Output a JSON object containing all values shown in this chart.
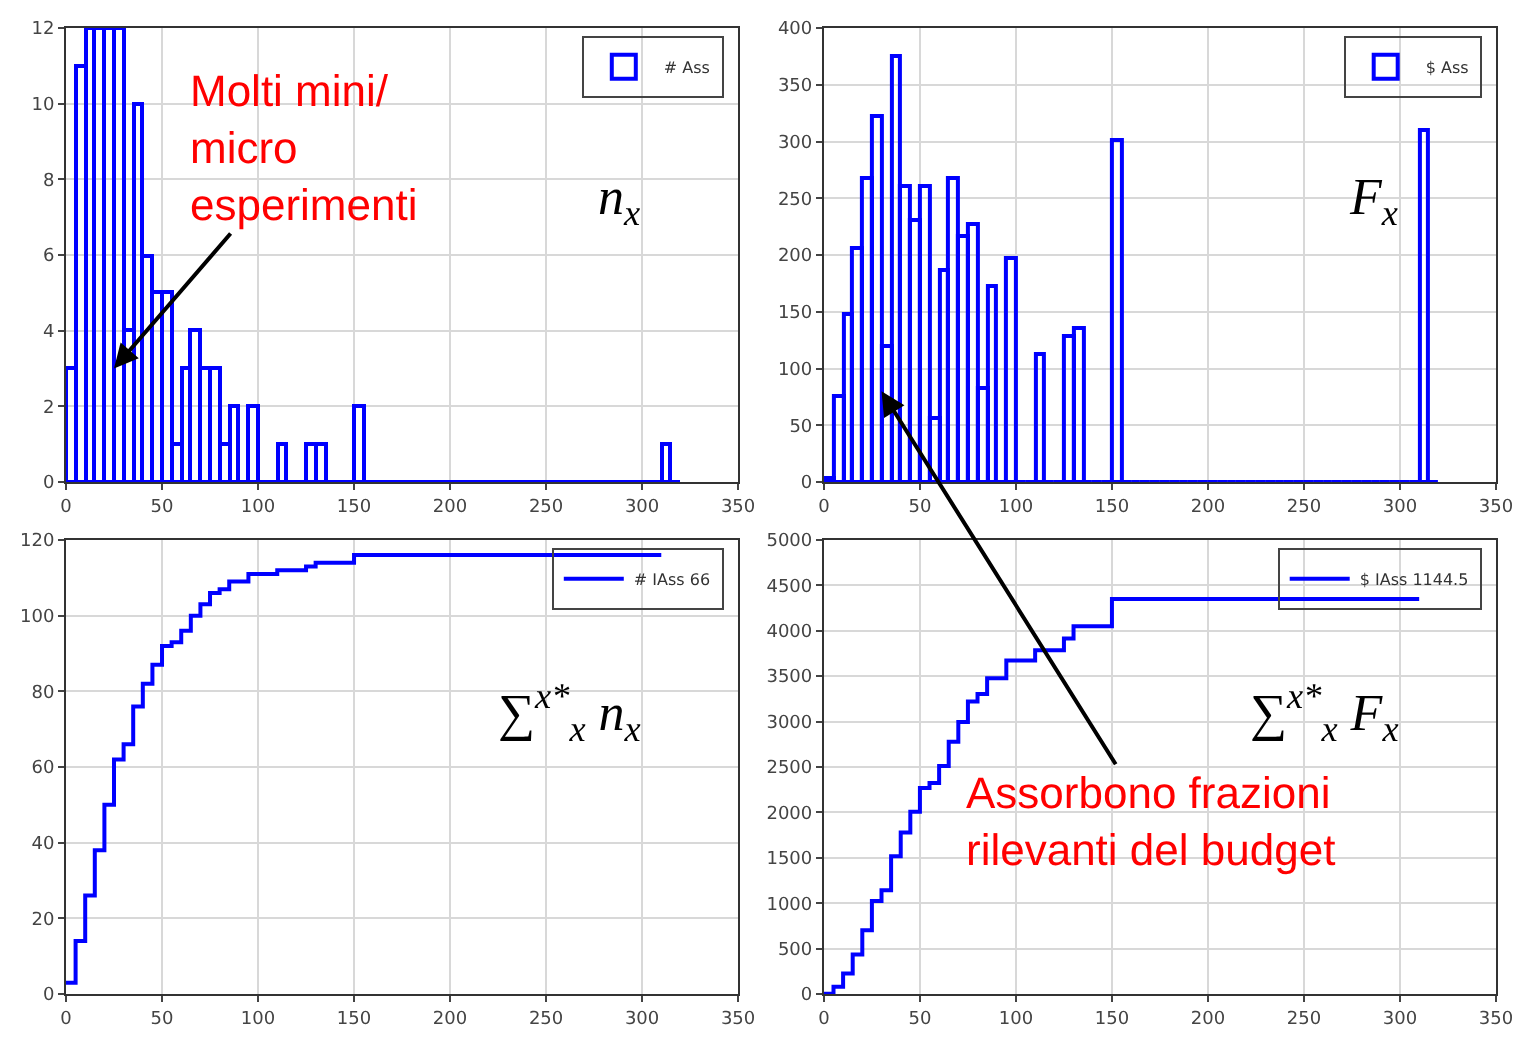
{
  "chart_data": [
    {
      "type": "histogram",
      "bins": [
        0,
        5,
        10,
        15,
        20,
        25,
        30,
        35,
        40,
        45,
        50,
        55,
        60,
        65,
        70,
        75,
        80,
        85,
        90,
        95,
        100,
        105,
        110,
        115,
        120,
        125,
        130,
        135,
        140,
        145,
        150,
        155,
        160,
        165,
        170,
        175,
        180,
        185,
        190,
        195,
        200,
        205,
        210,
        215,
        220,
        225,
        230,
        235,
        240,
        245,
        250,
        255,
        260,
        265,
        270,
        275,
        280,
        285,
        290,
        295,
        300,
        305,
        310,
        315,
        320
      ],
      "series": [
        {
          "name": "# Ass",
          "color": "#0000ff",
          "values": [
            3,
            11,
            12,
            12,
            12,
            12,
            4,
            10,
            6,
            5,
            5,
            1,
            3,
            4,
            3,
            3,
            1,
            2,
            0,
            2,
            0,
            0,
            1,
            0,
            0,
            1,
            1,
            0,
            0,
            0,
            2,
            0,
            0,
            0,
            0,
            0,
            0,
            0,
            0,
            0,
            0,
            0,
            0,
            0,
            0,
            0,
            0,
            0,
            0,
            0,
            0,
            0,
            0,
            0,
            0,
            0,
            0,
            0,
            0,
            0,
            0,
            0,
            1,
            0
          ]
        }
      ],
      "xlim": [
        0,
        350
      ],
      "xticks": [
        0,
        50,
        100,
        150,
        200,
        250,
        300,
        350
      ],
      "ylim": [
        0,
        12
      ],
      "yticks": [
        0,
        2,
        4,
        6,
        8,
        10,
        12
      ],
      "grid": true,
      "legend": "top right",
      "annotations": [
        {
          "text": "Molti mini/\nmicro\nesperimenti",
          "x": 25,
          "y": 3
        },
        "n$_{x}$"
      ]
    },
    {
      "type": "histogram",
      "bins": [
        0,
        5,
        10,
        15,
        20,
        25,
        30,
        35,
        40,
        45,
        50,
        55,
        60,
        65,
        70,
        75,
        80,
        85,
        90,
        95,
        100,
        105,
        110,
        115,
        120,
        125,
        130,
        135,
        140,
        145,
        150,
        155,
        160,
        165,
        170,
        175,
        180,
        185,
        190,
        195,
        200,
        205,
        210,
        215,
        220,
        225,
        230,
        235,
        240,
        245,
        250,
        255,
        260,
        265,
        270,
        275,
        280,
        285,
        290,
        295,
        300,
        305,
        310,
        315,
        320
      ],
      "series": [
        {
          "name": "$ Ass",
          "color": "#0000ff",
          "values": [
            4,
            75,
            148,
            207,
            267,
            322,
            120,
            375,
            260,
            230,
            260,
            57,
            187,
            267,
            216,
            227,
            82,
            172,
            0,
            197,
            0,
            0,
            113,
            0,
            0,
            128,
            135,
            0,
            0,
            0,
            302,
            0,
            0,
            0,
            0,
            0,
            0,
            0,
            0,
            0,
            0,
            0,
            0,
            0,
            0,
            0,
            0,
            0,
            0,
            0,
            0,
            0,
            0,
            0,
            0,
            0,
            0,
            0,
            0,
            0,
            0,
            0,
            310,
            0
          ]
        }
      ],
      "xlim": [
        0,
        350
      ],
      "xticks": [
        0,
        50,
        100,
        150,
        200,
        250,
        300,
        350
      ],
      "ylim": [
        0,
        400
      ],
      "yticks": [
        0,
        50,
        100,
        150,
        200,
        250,
        300,
        350,
        400
      ],
      "grid": true,
      "legend": "top right",
      "annotations": [
        {
          "text": "Assorbono frazioni\nrilevanti del budget",
          "x": 30,
          "y": 80
        },
        "F$_{x}$"
      ]
    },
    {
      "type": "step",
      "x": [
        0,
        5,
        10,
        15,
        20,
        25,
        30,
        35,
        40,
        45,
        50,
        55,
        60,
        65,
        70,
        75,
        80,
        85,
        90,
        95,
        100,
        105,
        110,
        115,
        120,
        125,
        130,
        135,
        140,
        145,
        150,
        310
      ],
      "series": [
        {
          "name": "# IAss 66",
          "color": "#0000ff",
          "values": [
            3,
            14,
            26,
            38,
            50,
            62,
            66,
            76,
            82,
            87,
            92,
            93,
            96,
            100,
            103,
            106,
            107,
            109,
            109,
            111,
            111,
            111,
            112,
            112,
            112,
            113,
            114,
            114,
            114,
            114,
            116,
            116
          ]
        }
      ],
      "xlim": [
        0,
        350
      ],
      "xticks": [
        0,
        50,
        100,
        150,
        200,
        250,
        300,
        350
      ],
      "ylim": [
        0,
        120
      ],
      "yticks": [
        0,
        20,
        40,
        60,
        80,
        100,
        120
      ],
      "grid": true,
      "legend": "top right",
      "annotations": [
        "∑$^{x*}$$_{x}$ n$_{x}$"
      ]
    },
    {
      "type": "step",
      "x": [
        0,
        5,
        10,
        15,
        20,
        25,
        30,
        35,
        40,
        45,
        50,
        55,
        60,
        65,
        70,
        75,
        80,
        85,
        90,
        95,
        100,
        105,
        110,
        115,
        120,
        125,
        130,
        135,
        140,
        145,
        150,
        310
      ],
      "series": [
        {
          "name": "$ IAss 1144.5",
          "color": "#0000ff",
          "values": [
            4,
            79,
            227,
            434,
            701,
            1023,
            1143,
            1518,
            1778,
            2008,
            2268,
            2325,
            2512,
            2779,
            2995,
            3222,
            3304,
            3476,
            3476,
            3673,
            3673,
            3673,
            3786,
            3786,
            3786,
            3914,
            4049,
            4049,
            4049,
            4049,
            4351,
            4351
          ]
        }
      ],
      "xlim": [
        0,
        350
      ],
      "xticks": [
        0,
        50,
        100,
        150,
        200,
        250,
        300,
        350
      ],
      "ylim": [
        0,
        5000
      ],
      "yticks": [
        0,
        500,
        1000,
        1500,
        2000,
        2500,
        3000,
        3500,
        4000,
        4500,
        5000
      ],
      "grid": true,
      "legend": "top right",
      "annotations": [
        "∑$^{x*}$$_{x}$ F$_{x}$"
      ]
    }
  ]
}
